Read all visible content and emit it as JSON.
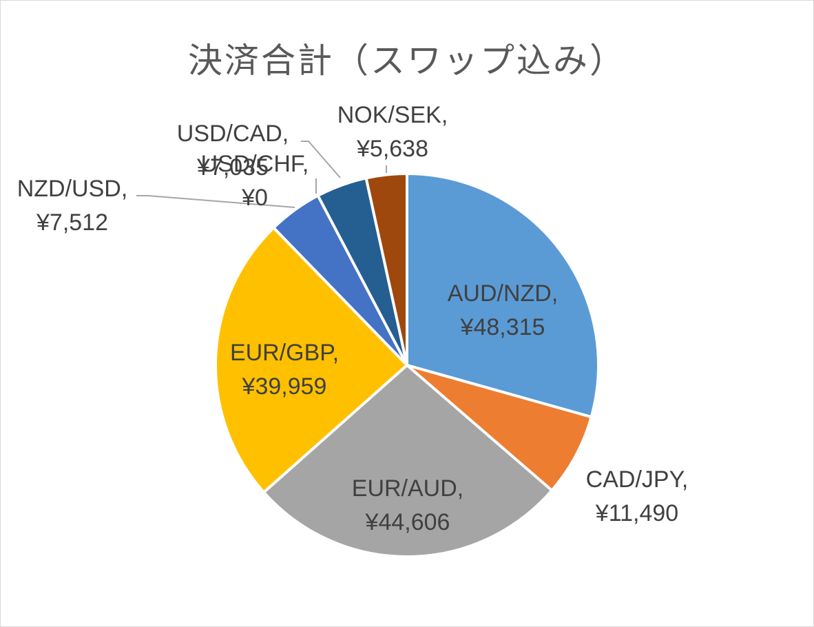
{
  "chart_data": {
    "type": "pie",
    "title": "決済合計（スワップ込み）",
    "slices": [
      {
        "category": "AUD/NZD",
        "value": 48315,
        "display": "¥48,315",
        "color": "#5b9bd5"
      },
      {
        "category": "CAD/JPY",
        "value": 11490,
        "display": "¥11,490",
        "color": "#ed7d31"
      },
      {
        "category": "EUR/AUD",
        "value": 44606,
        "display": "¥44,606",
        "color": "#a5a5a5"
      },
      {
        "category": "EUR/GBP",
        "value": 39959,
        "display": "¥39,959",
        "color": "#ffc000"
      },
      {
        "category": "NZD/USD",
        "value": 7512,
        "display": "¥7,512",
        "color": "#4472c4"
      },
      {
        "category": "USD/CHF",
        "value": 0,
        "display": "¥0",
        "color": "#70ad47"
      },
      {
        "category": "USD/CAD",
        "value": 7035,
        "display": "¥7,035",
        "color": "#255e91"
      },
      {
        "category": "NOK/SEK",
        "value": 5638,
        "display": "¥5,638",
        "color": "#9e480e"
      }
    ],
    "legend": "none",
    "data_labels": "category, value"
  }
}
